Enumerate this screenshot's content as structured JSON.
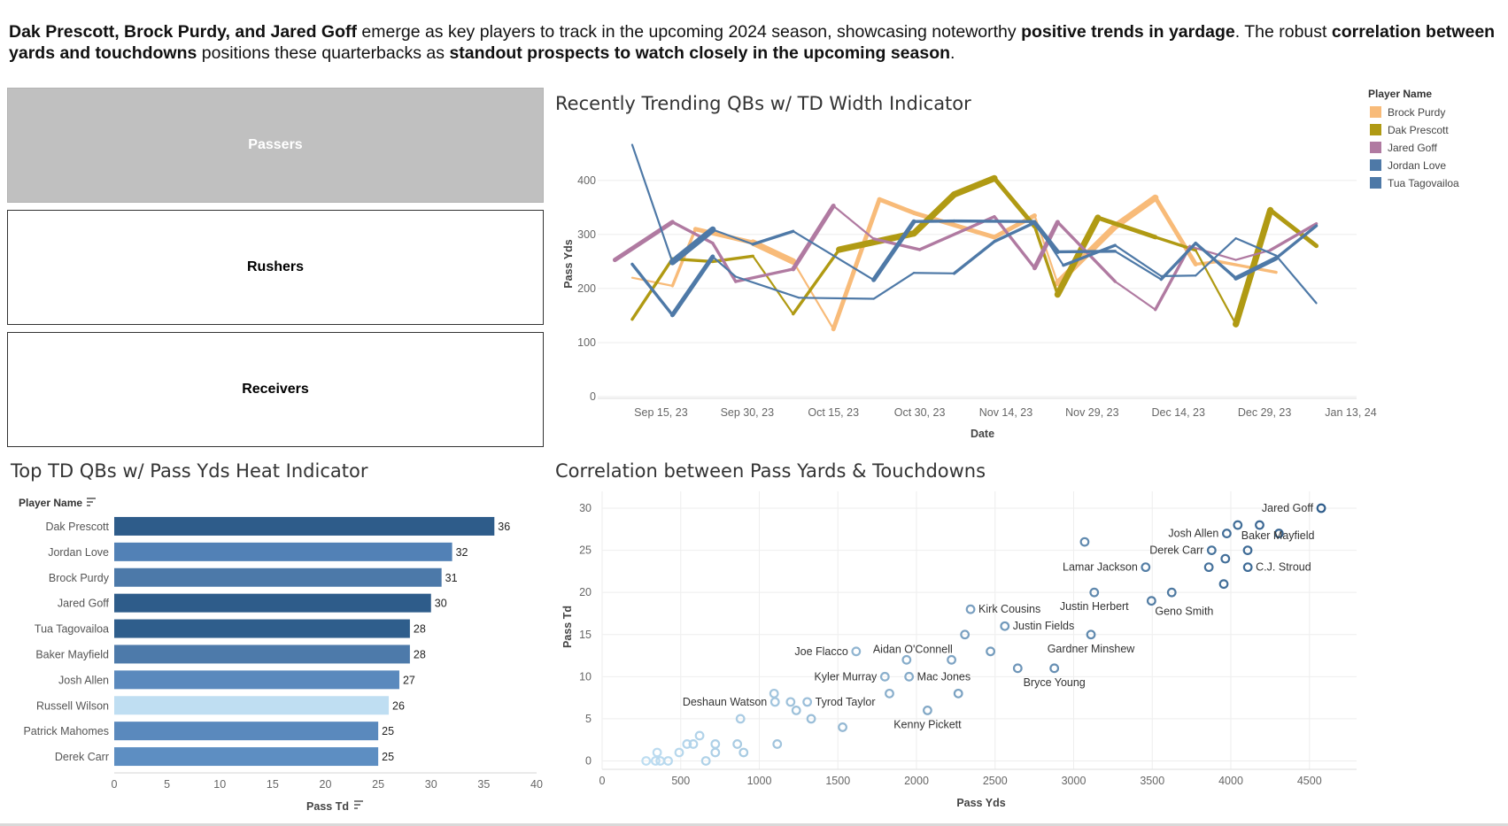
{
  "headline": {
    "p1": "Dak Prescott, Brock Purdy, and Jared Goff",
    "p2": " emerge as key players to track in the upcoming 2024 season, showcasing noteworthy ",
    "p3": "positive trends in yardage",
    "p4": ". The robust ",
    "p5": "correlation between yards and touchdowns",
    "p6": " positions these quarterbacks as ",
    "p7": "standout prospects to watch closely in the upcoming season",
    "p8": "."
  },
  "nav": {
    "passers": "Passers",
    "rushers": "Rushers",
    "receivers": "Receivers"
  },
  "line_panel": {
    "title": "Recently Trending QBs w/ TD Width Indicator",
    "legend_title": "Player Name"
  },
  "bar_panel": {
    "title": "Top TD QBs w/ Pass Yds Heat Indicator",
    "header": "Player Name"
  },
  "scatter_panel": {
    "title": "Correlation between Pass Yards & Touchdowns"
  },
  "chart_data": [
    {
      "type": "line",
      "title": "Recently Trending QBs w/ TD Width Indicator",
      "xlabel": "Date",
      "ylabel": "Pass Yds",
      "xticks": [
        "Sep 15, 23",
        "Sep 30, 23",
        "Oct 15, 23",
        "Oct 30, 23",
        "Nov 14, 23",
        "Nov 29, 23",
        "Dec 14, 23",
        "Dec 29, 23",
        "Jan 13, 24"
      ],
      "x_range": [
        "2023-09-04",
        "2024-01-14"
      ],
      "yticks": [
        0,
        100,
        200,
        300,
        400
      ],
      "ylim": [
        0,
        480
      ],
      "grid": true,
      "legend": "top-right",
      "line_width_encodes": "Pass TD",
      "series": [
        {
          "name": "Brock Purdy",
          "color": "#F8BB79",
          "points": [
            [
              "2023-09-10",
              220,
              1
            ],
            [
              "2023-09-17",
              205,
              1
            ],
            [
              "2023-09-21",
              310,
              2
            ],
            [
              "2023-10-01",
              285,
              3
            ],
            [
              "2023-10-08",
              250,
              4
            ],
            [
              "2023-10-15",
              125,
              1
            ],
            [
              "2023-10-23",
              365,
              3
            ],
            [
              "2023-10-29",
              340,
              3
            ],
            [
              "2023-11-12",
              295,
              3
            ],
            [
              "2023-11-19",
              335,
              3
            ],
            [
              "2023-11-23",
              210,
              1
            ],
            [
              "2023-12-03",
              315,
              4
            ],
            [
              "2023-12-10",
              368,
              4
            ],
            [
              "2023-12-17",
              245,
              3
            ],
            [
              "2023-12-21",
              250,
              2
            ],
            [
              "2023-12-31",
              230,
              2
            ]
          ]
        },
        {
          "name": "Dak Prescott",
          "color": "#B09A13",
          "points": [
            [
              "2023-09-10",
              143,
              1
            ],
            [
              "2023-09-17",
              255,
              2
            ],
            [
              "2023-09-24",
              250,
              2
            ],
            [
              "2023-10-01",
              260,
              2
            ],
            [
              "2023-10-08",
              153,
              1
            ],
            [
              "2023-10-16",
              272,
              2
            ],
            [
              "2023-10-29",
              302,
              4
            ],
            [
              "2023-11-05",
              374,
              4
            ],
            [
              "2023-11-12",
              404,
              4
            ],
            [
              "2023-11-19",
              315,
              3
            ],
            [
              "2023-11-23",
              189,
              2
            ],
            [
              "2023-11-30",
              331,
              4
            ],
            [
              "2023-12-10",
              295,
              3
            ],
            [
              "2023-12-17",
              271,
              2
            ],
            [
              "2023-12-24",
              134,
              1
            ],
            [
              "2023-12-30",
              345,
              4
            ],
            [
              "2024-01-07",
              279,
              3
            ]
          ]
        },
        {
          "name": "Jared Goff",
          "color": "#B07AA1",
          "points": [
            [
              "2023-09-07",
              253,
              1
            ],
            [
              "2023-09-17",
              323,
              3
            ],
            [
              "2023-09-24",
              284,
              2
            ],
            [
              "2023-09-28",
              213,
              2
            ],
            [
              "2023-10-08",
              236,
              2
            ],
            [
              "2023-10-15",
              353,
              3
            ],
            [
              "2023-10-22",
              292,
              1
            ],
            [
              "2023-10-30",
              272,
              2
            ],
            [
              "2023-11-12",
              333,
              2
            ],
            [
              "2023-11-19",
              238,
              2
            ],
            [
              "2023-11-23",
              323,
              3
            ],
            [
              "2023-12-03",
              213,
              2
            ],
            [
              "2023-12-10",
              161,
              1
            ],
            [
              "2023-12-16",
              278,
              2
            ],
            [
              "2023-12-24",
              253,
              1
            ],
            [
              "2023-12-30",
              271,
              1
            ],
            [
              "2024-01-07",
              320,
              2
            ]
          ]
        },
        {
          "name": "Jordan Love",
          "color": "#4E79A7",
          "points": [
            [
              "2023-09-10",
              245,
              3
            ],
            [
              "2023-09-17",
              151,
              2
            ],
            [
              "2023-09-24",
              259,
              3
            ],
            [
              "2023-09-28",
              222,
              1
            ],
            [
              "2023-10-09",
              183,
              1
            ],
            [
              "2023-10-22",
              181,
              1
            ],
            [
              "2023-10-29",
              229,
              1
            ],
            [
              "2023-11-05",
              228,
              1
            ],
            [
              "2023-11-12",
              287,
              2
            ],
            [
              "2023-11-19",
              322,
              2
            ],
            [
              "2023-11-23",
              268,
              3
            ],
            [
              "2023-12-03",
              269,
              2
            ],
            [
              "2023-12-11",
              217,
              1
            ],
            [
              "2023-12-17",
              284,
              2
            ],
            [
              "2023-12-24",
              219,
              2
            ],
            [
              "2023-12-31",
              256,
              3
            ],
            [
              "2024-01-07",
              316,
              2
            ]
          ]
        },
        {
          "name": "Tua Tagovailoa",
          "color": "#4E79A7",
          "points": [
            [
              "2023-09-10",
              466,
              3
            ],
            [
              "2023-09-17",
              249,
              1
            ],
            [
              "2023-09-24",
              309,
              4
            ],
            [
              "2023-10-01",
              282,
              1
            ],
            [
              "2023-10-08",
              306,
              2
            ],
            [
              "2023-10-22",
              216,
              1
            ],
            [
              "2023-10-29",
              324,
              3
            ],
            [
              "2023-11-05",
              325,
              2
            ],
            [
              "2023-11-19",
              324,
              2
            ],
            [
              "2023-11-24",
              243,
              1
            ],
            [
              "2023-12-03",
              280,
              2
            ],
            [
              "2023-12-11",
              223,
              1
            ],
            [
              "2023-12-17",
              224,
              1
            ],
            [
              "2023-12-24",
              293,
              1
            ],
            [
              "2023-12-31",
              261,
              1
            ],
            [
              "2024-01-07",
              173,
              1
            ]
          ]
        }
      ]
    },
    {
      "type": "bar",
      "title": "Top TD QBs w/ Pass Yds Heat Indicator",
      "xlabel": "Pass Td",
      "ylabel": "Player Name",
      "categories": [
        "Dak Prescott",
        "Jordan Love",
        "Brock Purdy",
        "Jared Goff",
        "Tua Tagovailoa",
        "Baker Mayfield",
        "Josh Allen",
        "Russell Wilson",
        "Patrick Mahomes",
        "Derek Carr"
      ],
      "values": [
        36,
        32,
        31,
        30,
        28,
        28,
        27,
        26,
        25,
        25
      ],
      "colors": [
        "#2E5C8A",
        "#5281B6",
        "#4C79A9",
        "#2E5C8A",
        "#2F5E8C",
        "#4D7AAA",
        "#5A89BD",
        "#BFDEF2",
        "#5A89BD",
        "#5D8EC2"
      ],
      "xticks": [
        0,
        5,
        10,
        15,
        20,
        25,
        30,
        35,
        40
      ],
      "xlim": [
        0,
        40
      ],
      "grid": false
    },
    {
      "type": "scatter",
      "title": "Correlation between Pass Yards & Touchdowns",
      "xlabel": "Pass Yds",
      "ylabel": "Pass Td",
      "xticks": [
        0,
        500,
        1000,
        1500,
        2000,
        2500,
        3000,
        3500,
        4000,
        4500
      ],
      "yticks": [
        0,
        5,
        10,
        15,
        20,
        25,
        30
      ],
      "xlim": [
        0,
        4800
      ],
      "ylim": [
        -1,
        32
      ],
      "grid": true,
      "points": [
        {
          "x": 4575,
          "y": 30,
          "label": "Jared Goff"
        },
        {
          "x": 4183,
          "y": 28,
          "label": ""
        },
        {
          "x": 4306,
          "y": 27,
          "label": ""
        },
        {
          "x": 3974,
          "y": 27,
          "label": "Josh Allen"
        },
        {
          "x": 4044,
          "y": 28,
          "label": "Baker Mayfield"
        },
        {
          "x": 4107,
          "y": 25,
          "label": ""
        },
        {
          "x": 3878,
          "y": 25,
          "label": "Derek Carr"
        },
        {
          "x": 3965,
          "y": 24,
          "label": ""
        },
        {
          "x": 3860,
          "y": 23,
          "label": ""
        },
        {
          "x": 3458,
          "y": 23,
          "label": "Lamar Jackson"
        },
        {
          "x": 4108,
          "y": 23,
          "label": "C.J. Stroud"
        },
        {
          "x": 3070,
          "y": 26,
          "label": ""
        },
        {
          "x": 3955,
          "y": 21,
          "label": ""
        },
        {
          "x": 3624,
          "y": 20,
          "label": ""
        },
        {
          "x": 3131,
          "y": 20,
          "label": "Justin Herbert"
        },
        {
          "x": 3495,
          "y": 19,
          "label": "Geno Smith"
        },
        {
          "x": 2344,
          "y": 18,
          "label": "Kirk Cousins"
        },
        {
          "x": 2562,
          "y": 16,
          "label": "Justin Fields"
        },
        {
          "x": 2308,
          "y": 15,
          "label": ""
        },
        {
          "x": 3110,
          "y": 15,
          "label": "Gardner Minshew"
        },
        {
          "x": 1616,
          "y": 13,
          "label": "Joe Flacco"
        },
        {
          "x": 2471,
          "y": 13,
          "label": ""
        },
        {
          "x": 1937,
          "y": 12,
          "label": "Aidan O'Connell"
        },
        {
          "x": 2223,
          "y": 12,
          "label": ""
        },
        {
          "x": 2644,
          "y": 11,
          "label": ""
        },
        {
          "x": 2877,
          "y": 11,
          "label": "Bryce Young"
        },
        {
          "x": 1799,
          "y": 10,
          "label": "Kyler Murray"
        },
        {
          "x": 1953,
          "y": 10,
          "label": "Mac Jones"
        },
        {
          "x": 1828,
          "y": 8,
          "label": ""
        },
        {
          "x": 2266,
          "y": 8,
          "label": ""
        },
        {
          "x": 1094,
          "y": 8,
          "label": ""
        },
        {
          "x": 1100,
          "y": 7,
          "label": "Deshaun Watson"
        },
        {
          "x": 1199,
          "y": 7,
          "label": ""
        },
        {
          "x": 1305,
          "y": 7,
          "label": "Tyrod Taylor"
        },
        {
          "x": 1235,
          "y": 6,
          "label": ""
        },
        {
          "x": 2070,
          "y": 6,
          "label": "Kenny Pickett"
        },
        {
          "x": 880,
          "y": 5,
          "label": ""
        },
        {
          "x": 1330,
          "y": 5,
          "label": ""
        },
        {
          "x": 1530,
          "y": 4,
          "label": ""
        },
        {
          "x": 620,
          "y": 3,
          "label": ""
        },
        {
          "x": 540,
          "y": 2,
          "label": ""
        },
        {
          "x": 580,
          "y": 2,
          "label": ""
        },
        {
          "x": 720,
          "y": 2,
          "label": ""
        },
        {
          "x": 860,
          "y": 2,
          "label": ""
        },
        {
          "x": 1114,
          "y": 2,
          "label": ""
        },
        {
          "x": 350,
          "y": 1,
          "label": ""
        },
        {
          "x": 490,
          "y": 1,
          "label": ""
        },
        {
          "x": 720,
          "y": 1,
          "label": ""
        },
        {
          "x": 900,
          "y": 1,
          "label": ""
        },
        {
          "x": 280,
          "y": 0,
          "label": ""
        },
        {
          "x": 340,
          "y": 0,
          "label": ""
        },
        {
          "x": 370,
          "y": 0,
          "label": ""
        },
        {
          "x": 420,
          "y": 0,
          "label": ""
        },
        {
          "x": 660,
          "y": 0,
          "label": ""
        }
      ]
    }
  ]
}
